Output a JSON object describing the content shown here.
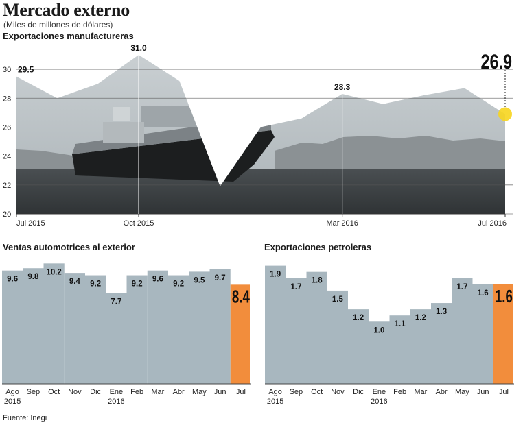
{
  "header": {
    "title": "Mercado externo",
    "subtitle": "(Miles de millones de dólares)",
    "source": "Fuente: Inegi"
  },
  "colors": {
    "sea": "#3a3e40",
    "mountains": "#8f9598",
    "bar": "#a8b7bf",
    "highlight": "#f28d3c",
    "marker": "#f7d51e"
  },
  "chart_data": [
    {
      "type": "area",
      "title": "Exportaciones manufactureras",
      "x": [
        "Jul 2015",
        "Ago 2015",
        "Sep 2015",
        "Oct 2015",
        "Nov 2015",
        "Dic 2015",
        "Ene 2016",
        "Feb 2016",
        "Mar 2016",
        "Abr 2016",
        "May 2016",
        "Jun 2016",
        "Jul 2016"
      ],
      "values": [
        29.5,
        28.0,
        29.0,
        31.0,
        29.2,
        21.9,
        26.0,
        26.6,
        28.3,
        27.6,
        28.2,
        28.7,
        26.9
      ],
      "ylim": [
        20,
        31
      ],
      "yticks": [
        "20",
        "22",
        "24",
        "26",
        "28",
        "30"
      ],
      "xtick_labels": [
        {
          "index": 0,
          "label": "Jul 2015"
        },
        {
          "index": 3,
          "label": "Oct 2015"
        },
        {
          "index": 8,
          "label": "Mar 2016"
        },
        {
          "index": 12,
          "label": "Jul 2016"
        }
      ],
      "annotations": [
        {
          "index": 0,
          "label": "29.5"
        },
        {
          "index": 3,
          "label": "31.0"
        },
        {
          "index": 8,
          "label": "28.3"
        }
      ],
      "highlight": {
        "index": 12,
        "label": "26.9"
      }
    },
    {
      "type": "bar",
      "title": "Ventas automotrices al exterior",
      "categories": [
        [
          "Ago",
          "2015"
        ],
        [
          "Sep",
          ""
        ],
        [
          "Oct",
          ""
        ],
        [
          "Nov",
          ""
        ],
        [
          "Dic",
          ""
        ],
        [
          "Ene",
          "2016"
        ],
        [
          "Feb",
          ""
        ],
        [
          "Mar",
          ""
        ],
        [
          "Abr",
          ""
        ],
        [
          "May",
          ""
        ],
        [
          "Jun",
          ""
        ],
        [
          "Jul",
          ""
        ]
      ],
      "values": [
        9.6,
        9.8,
        10.2,
        9.4,
        9.2,
        7.7,
        9.2,
        9.6,
        9.2,
        9.5,
        9.7,
        8.4
      ],
      "labels": [
        "9.6",
        "9.8",
        "10.2",
        "9.4",
        "9.2",
        "7.7",
        "9.2",
        "9.6",
        "9.2",
        "9.5",
        "9.7",
        "8.4"
      ],
      "ylim": [
        0,
        10.8
      ],
      "highlight_index": 11
    },
    {
      "type": "bar",
      "title": "Exportaciones petroleras",
      "categories": [
        [
          "Ago",
          "2015"
        ],
        [
          "Sep",
          ""
        ],
        [
          "Oct",
          ""
        ],
        [
          "Nov",
          ""
        ],
        [
          "Dic",
          ""
        ],
        [
          "Ene",
          "2016"
        ],
        [
          "Feb",
          ""
        ],
        [
          "Mar",
          ""
        ],
        [
          "Abr",
          ""
        ],
        [
          "May",
          ""
        ],
        [
          "Jun",
          ""
        ],
        [
          "Jul",
          ""
        ]
      ],
      "values": [
        1.9,
        1.7,
        1.8,
        1.5,
        1.2,
        1.0,
        1.1,
        1.2,
        1.3,
        1.7,
        1.6,
        1.6
      ],
      "labels": [
        "1.9",
        "1.7",
        "1.8",
        "1.5",
        "1.2",
        "1.0",
        "1.1",
        "1.2",
        "1.3",
        "1.7",
        "1.6",
        "1.6"
      ],
      "ylim": [
        0.0,
        2.05
      ],
      "highlight_index": 11
    }
  ]
}
